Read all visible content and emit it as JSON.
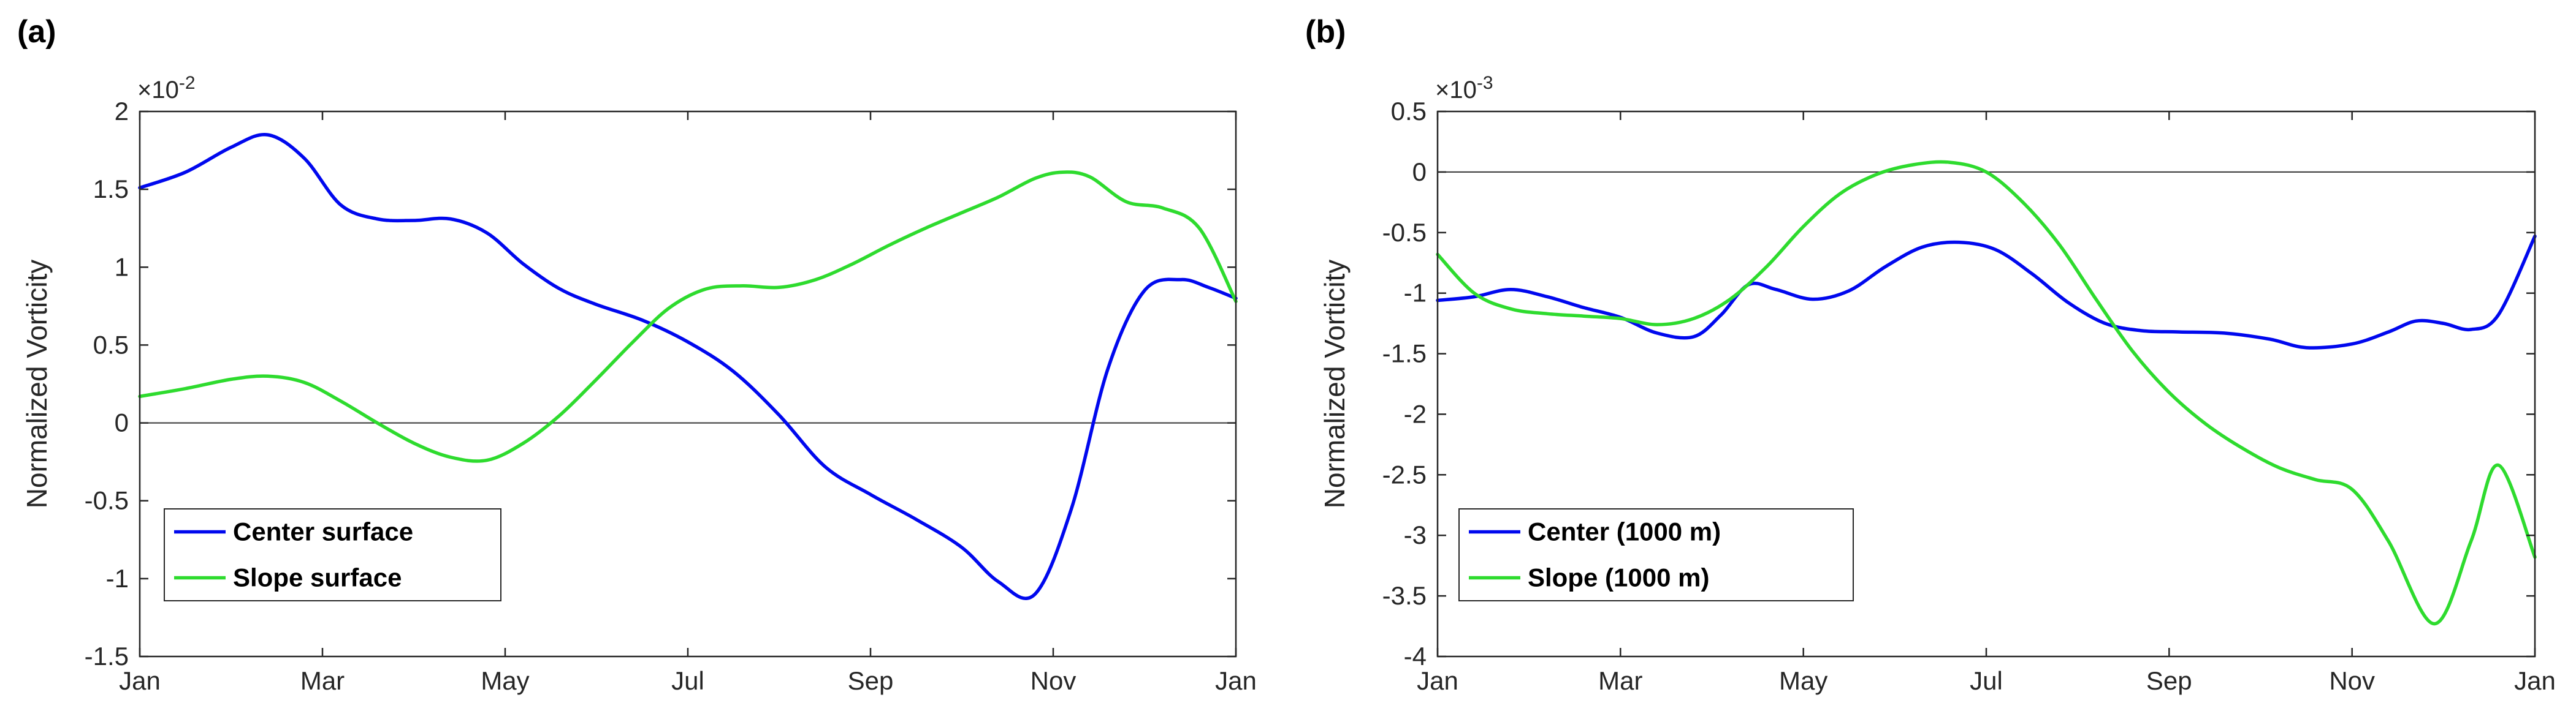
{
  "figure": {
    "background_color": "#ffffff"
  },
  "chart_data": [
    {
      "type": "line",
      "panel_label": "(a)",
      "title": "",
      "xlabel": "",
      "ylabel": "Normalized Vorticity",
      "y_exponent": {
        "base": "×10",
        "exp": "-2"
      },
      "xlim": [
        0,
        12
      ],
      "ylim": [
        -1.5,
        2
      ],
      "x_tick_positions": [
        0,
        2,
        4,
        6,
        8,
        10,
        12
      ],
      "x_tick_labels": [
        "Jan",
        "Mar",
        "May",
        "Jul",
        "Sep",
        "Nov",
        "Jan"
      ],
      "y_tick_values": [
        -1.5,
        -1,
        -0.5,
        0,
        0.5,
        1,
        1.5,
        2
      ],
      "y_tick_labels": [
        "-1.5",
        "-1",
        "-0.5",
        "0",
        "0.5",
        "1",
        "1.5",
        "2"
      ],
      "grid": false,
      "zero_line": 0,
      "zero_line_color": "#333333",
      "axis_color": "#262626",
      "legend_position": "southwest",
      "series": [
        {
          "name": "Center surface",
          "color": "#0008ee",
          "x": [
            0,
            0.5,
            1,
            1.4,
            1.8,
            2.2,
            2.6,
            3,
            3.4,
            3.8,
            4.2,
            4.6,
            5,
            5.5,
            6,
            6.5,
            7,
            7.5,
            8,
            8.5,
            9,
            9.4,
            9.8,
            10.2,
            10.6,
            11,
            11.4,
            11.7,
            12
          ],
          "y": [
            1.51,
            1.61,
            1.77,
            1.85,
            1.7,
            1.4,
            1.31,
            1.3,
            1.31,
            1.22,
            1.02,
            0.86,
            0.76,
            0.66,
            0.52,
            0.33,
            0.05,
            -0.28,
            -0.46,
            -0.62,
            -0.8,
            -1.02,
            -1.1,
            -0.55,
            0.35,
            0.85,
            0.92,
            0.87,
            0.8
          ]
        },
        {
          "name": "Slope surface",
          "color": "#2edb2e",
          "x": [
            0,
            0.5,
            1,
            1.4,
            1.8,
            2.2,
            2.6,
            3,
            3.4,
            3.8,
            4.2,
            4.6,
            5,
            5.4,
            5.8,
            6.2,
            6.6,
            7,
            7.4,
            7.8,
            8.2,
            8.6,
            9,
            9.4,
            9.8,
            10.1,
            10.4,
            10.8,
            11.2,
            11.6,
            12
          ],
          "y": [
            0.17,
            0.22,
            0.28,
            0.3,
            0.26,
            0.14,
            0.0,
            -0.13,
            -0.22,
            -0.24,
            -0.13,
            0.05,
            0.28,
            0.52,
            0.74,
            0.86,
            0.88,
            0.87,
            0.92,
            1.02,
            1.14,
            1.25,
            1.35,
            1.45,
            1.57,
            1.61,
            1.58,
            1.42,
            1.38,
            1.25,
            0.78
          ]
        }
      ]
    },
    {
      "type": "line",
      "panel_label": "(b)",
      "title": "",
      "xlabel": "",
      "ylabel": "Normalized Vorticity",
      "y_exponent": {
        "base": "×10",
        "exp": "-3"
      },
      "xlim": [
        0,
        12
      ],
      "ylim": [
        -4,
        0.5
      ],
      "x_tick_positions": [
        0,
        2,
        4,
        6,
        8,
        10,
        12
      ],
      "x_tick_labels": [
        "Jan",
        "Mar",
        "May",
        "Jul",
        "Sep",
        "Nov",
        "Jan"
      ],
      "y_tick_values": [
        -4,
        -3.5,
        -3,
        -2.5,
        -2,
        -1.5,
        -1,
        -0.5,
        0,
        0.5
      ],
      "y_tick_labels": [
        "-4",
        "-3.5",
        "-3",
        "-2.5",
        "-2",
        "-1.5",
        "-1",
        "-0.5",
        "0",
        "0.5"
      ],
      "grid": false,
      "zero_line": 0,
      "zero_line_color": "#333333",
      "axis_color": "#262626",
      "legend_position": "southwest",
      "series": [
        {
          "name": "Center (1000 m)",
          "color": "#0008ee",
          "x": [
            0,
            0.4,
            0.8,
            1.2,
            1.6,
            2,
            2.4,
            2.8,
            3.1,
            3.4,
            3.7,
            4.1,
            4.5,
            4.9,
            5.3,
            5.7,
            6.1,
            6.5,
            6.9,
            7.3,
            7.7,
            8.1,
            8.6,
            9.1,
            9.5,
            10,
            10.4,
            10.7,
            11,
            11.3,
            11.6,
            12
          ],
          "y": [
            -1.06,
            -1.03,
            -0.97,
            -1.03,
            -1.12,
            -1.2,
            -1.33,
            -1.36,
            -1.18,
            -0.93,
            -0.97,
            -1.05,
            -0.98,
            -0.78,
            -0.62,
            -0.58,
            -0.64,
            -0.84,
            -1.08,
            -1.25,
            -1.31,
            -1.32,
            -1.33,
            -1.38,
            -1.45,
            -1.42,
            -1.32,
            -1.23,
            -1.25,
            -1.3,
            -1.18,
            -0.53
          ]
        },
        {
          "name": "Slope (1000 m)",
          "color": "#2edb2e",
          "x": [
            0,
            0.4,
            0.8,
            1.2,
            1.6,
            2,
            2.4,
            2.8,
            3.2,
            3.6,
            4,
            4.4,
            4.8,
            5.2,
            5.6,
            6,
            6.4,
            6.8,
            7.2,
            7.6,
            8,
            8.4,
            8.8,
            9.2,
            9.6,
            10,
            10.4,
            10.9,
            11.3,
            11.6,
            12
          ],
          "y": [
            -0.68,
            -1.0,
            -1.13,
            -1.17,
            -1.19,
            -1.21,
            -1.26,
            -1.21,
            -1.05,
            -0.78,
            -0.45,
            -0.18,
            -0.02,
            0.06,
            0.08,
            0.0,
            -0.25,
            -0.6,
            -1.05,
            -1.48,
            -1.82,
            -2.08,
            -2.28,
            -2.44,
            -2.54,
            -2.62,
            -3.05,
            -3.73,
            -3.05,
            -2.42,
            -3.18
          ]
        }
      ]
    }
  ]
}
